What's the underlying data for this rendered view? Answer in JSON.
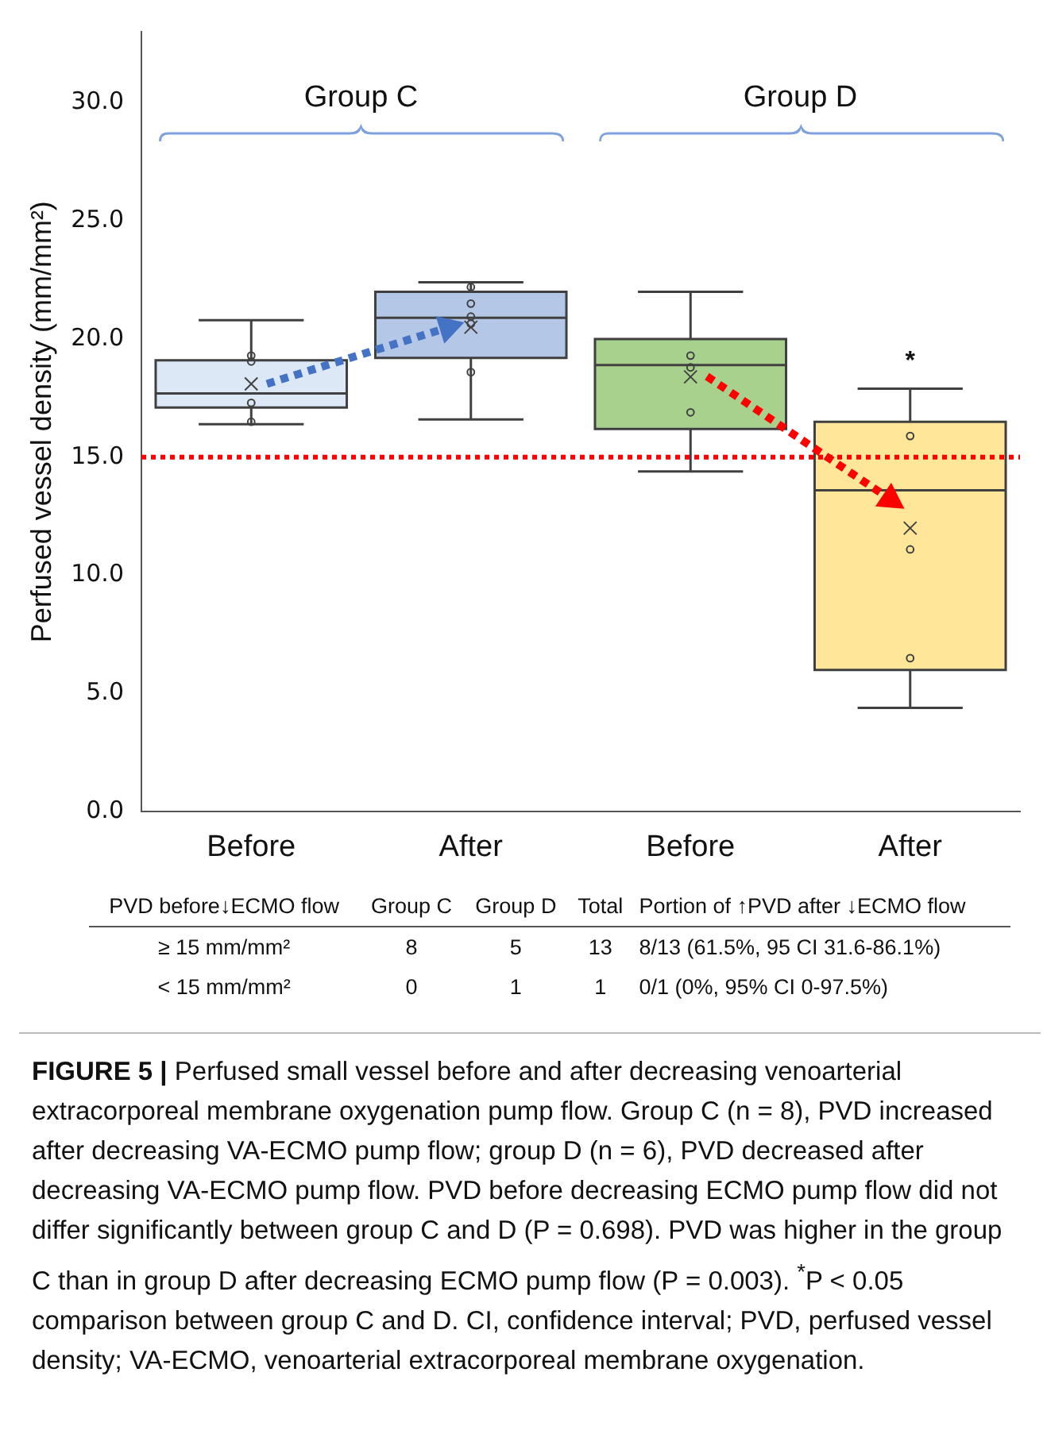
{
  "chart_data": {
    "type": "box",
    "ylabel": "Perfused vessel density (mm/mm²)",
    "categories": [
      "Before",
      "After",
      "Before",
      "After"
    ],
    "colors": [
      "#dce8f5",
      "#b4c7e7",
      "#a9d18e",
      "#ffe699"
    ],
    "boxes": [
      {
        "low": 16.4,
        "q1": 17.1,
        "median": 17.7,
        "q3": 19.1,
        "high": 20.8,
        "mean": 18.1,
        "outliers": [
          19.3,
          19.05,
          17.3,
          16.5
        ]
      },
      {
        "low": 16.6,
        "q1": 19.2,
        "median": 20.9,
        "q3": 22.0,
        "high": 22.4,
        "mean": 20.5,
        "outliers": [
          22.2,
          21.5,
          20.95,
          20.65,
          18.6
        ]
      },
      {
        "low": 14.4,
        "q1": 16.2,
        "median": 18.9,
        "q3": 20.0,
        "high": 22.0,
        "mean": 18.4,
        "outliers": [
          19.3,
          18.8,
          16.9
        ]
      },
      {
        "low": 4.4,
        "q1": 6.0,
        "median": 13.6,
        "q3": 16.5,
        "high": 17.9,
        "mean": 12.0,
        "outliers": [
          15.9,
          11.1,
          6.5
        ]
      }
    ],
    "ylim": [
      0,
      33
    ],
    "yticks": [
      {
        "value": 0,
        "label": "0.0"
      },
      {
        "value": 5,
        "label": "5.0"
      },
      {
        "value": 10,
        "label": "10.0"
      },
      {
        "value": 15,
        "label": "15.0"
      },
      {
        "value": 20,
        "label": "20.0"
      },
      {
        "value": 25,
        "label": "25.0"
      },
      {
        "value": 30,
        "label": "30.0"
      }
    ],
    "ref_lines": [
      {
        "axis": "y",
        "value": 15,
        "color": "#ff0000",
        "line_style": "dotted"
      }
    ],
    "annotations": [
      "Group C",
      "Group D",
      "*",
      "PVD before↓ECMO flow",
      "Group C",
      "Group D",
      "Total",
      "Portion of ↑PVD after ↓ECMO flow",
      "≥ 15 mm/mm²",
      "8",
      "5",
      "13",
      "8/13 (61.5%, 95 CI 31.6-86.1%)",
      "< 15 mm/mm²",
      "0",
      "1",
      "1",
      "0/1  (0%, 95% CI 0-97.5%)",
      "FIGURE 5 |",
      "Perfused small vessel before and after decreasing venoarterial extracorporeal membrane oxygenation pump flow. Group C (n = 8), PVD increased after decreasing VA-ECMO pump flow; group D (n = 6), PVD decreased after decreasing VA-ECMO pump flow. PVD before decreasing ECMO pump flow did not differ significantly between group C and D (P = 0.698). PVD was higher in the group C than in group D after decreasing ECMO pump flow (P = 0.003). $^{*}$P < 0.05 comparison between group C and D. CI, confidence interval; PVD, perfused vessel density; VA-ECMO, venoarterial extracorporeal membrane oxygenation."
    ]
  }
}
